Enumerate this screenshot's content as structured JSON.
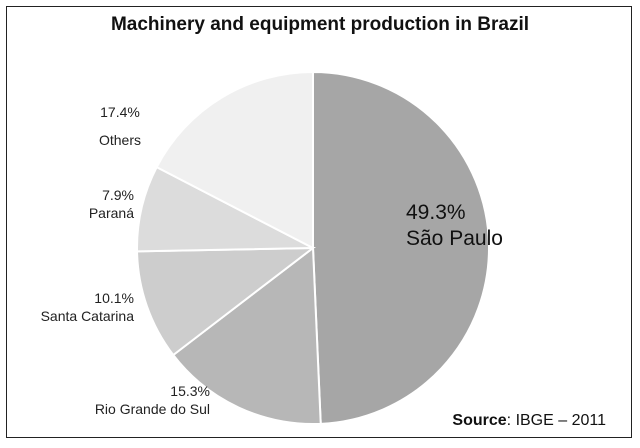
{
  "chart_data": {
    "type": "pie",
    "title": "Machinery and equipment production in Brazil",
    "slices": [
      {
        "label": "São Paulo",
        "value": 49.3,
        "display": "49.3%",
        "color": "#a6a6a6"
      },
      {
        "label": "Rio Grande do Sul",
        "value": 15.3,
        "display": "15.3%",
        "color": "#b7b7b7"
      },
      {
        "label": "Santa Catarina",
        "value": 10.1,
        "display": "10.1%",
        "color": "#cdcdcd"
      },
      {
        "label": "Paraná",
        "value": 7.9,
        "display": "7.9%",
        "color": "#dcdcdc"
      },
      {
        "label": "Others",
        "value": 17.4,
        "display": "17.4%",
        "color": "#f0f0f0"
      }
    ],
    "start": "12 o'clock",
    "direction": "clockwise"
  },
  "source": {
    "prefix": "Source",
    "text": ": IBGE – 2011"
  }
}
